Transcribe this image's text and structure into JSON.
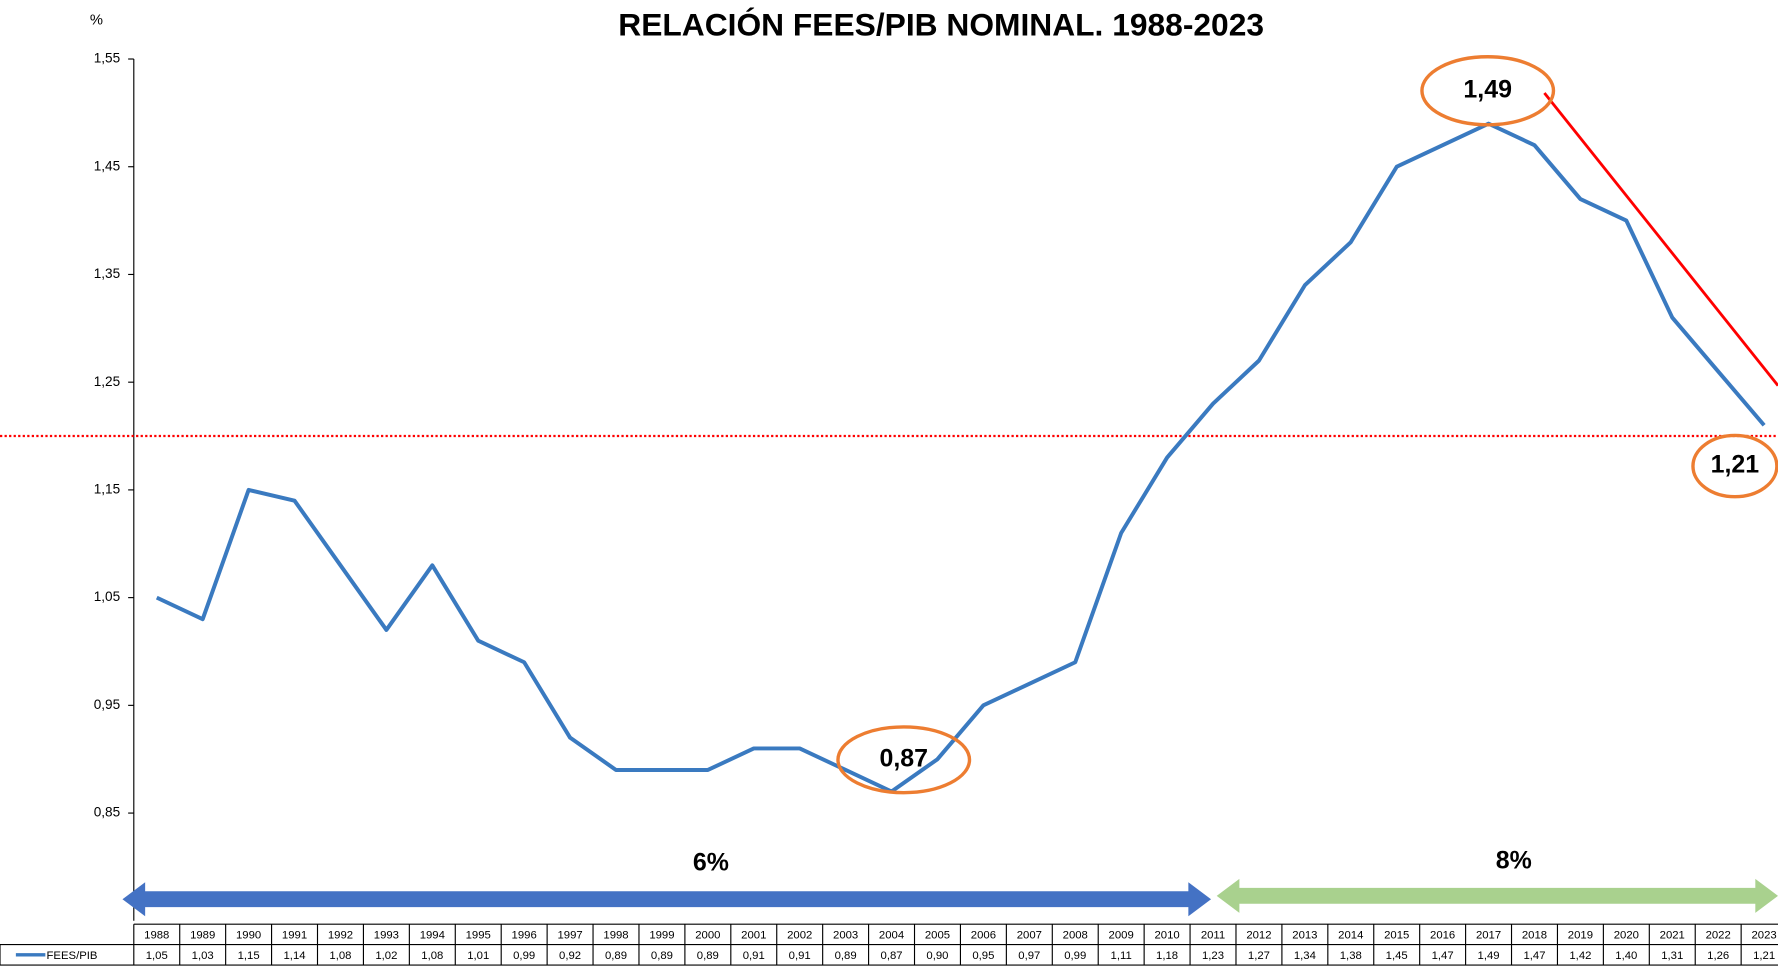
{
  "chart_data": {
    "type": "line",
    "title": "RELACIÓN FEES/PIB NOMINAL. 1988-2023",
    "y_label": "%",
    "categories": [
      "1988",
      "1989",
      "1990",
      "1991",
      "1992",
      "1993",
      "1994",
      "1995",
      "1996",
      "1997",
      "1998",
      "1999",
      "2000",
      "2001",
      "2002",
      "2003",
      "2004",
      "2005",
      "2006",
      "2007",
      "2008",
      "2009",
      "2010",
      "2011",
      "2012",
      "2013",
      "2014",
      "2015",
      "2016",
      "2017",
      "2018",
      "2019",
      "2020",
      "2021",
      "2022",
      "2023"
    ],
    "series": [
      {
        "name": "FEES/PIB",
        "color": "#3a7ac0",
        "values": [
          1.05,
          1.03,
          1.15,
          1.14,
          1.08,
          1.02,
          1.08,
          1.01,
          0.99,
          0.92,
          0.89,
          0.89,
          0.89,
          0.91,
          0.91,
          0.89,
          0.87,
          0.9,
          0.95,
          0.97,
          0.99,
          1.11,
          1.18,
          1.23,
          1.27,
          1.34,
          1.38,
          1.45,
          1.47,
          1.49,
          1.47,
          1.42,
          1.4,
          1.31,
          1.26,
          1.21
        ],
        "value_labels": [
          "1,05",
          "1,03",
          "1,15",
          "1,14",
          "1,08",
          "1,02",
          "1,08",
          "1,01",
          "0,99",
          "0,92",
          "0,89",
          "0,89",
          "0,89",
          "0,91",
          "0,91",
          "0,89",
          "0,87",
          "0,90",
          "0,95",
          "0,97",
          "0,99",
          "1,11",
          "1,18",
          "1,23",
          "1,27",
          "1,34",
          "1,38",
          "1,45",
          "1,47",
          "1,49",
          "1,47",
          "1,42",
          "1,40",
          "1,31",
          "1,26",
          "1,21"
        ]
      }
    ],
    "ylim": [
      0.75,
      1.55
    ],
    "yticks": [
      {
        "value": 0.85,
        "label": "0,85"
      },
      {
        "value": 0.95,
        "label": "0,95"
      },
      {
        "value": 1.05,
        "label": "1,05"
      },
      {
        "value": 1.15,
        "label": "1,15"
      },
      {
        "value": 1.25,
        "label": "1,25"
      },
      {
        "value": 1.35,
        "label": "1,35"
      },
      {
        "value": 1.45,
        "label": "1,45"
      },
      {
        "value": 1.55,
        "label": "1,55"
      }
    ],
    "reference_line": 1.2,
    "annotations": [
      "1,49",
      "0,87",
      "1,21"
    ],
    "periods": [
      "6%",
      "8%"
    ]
  }
}
